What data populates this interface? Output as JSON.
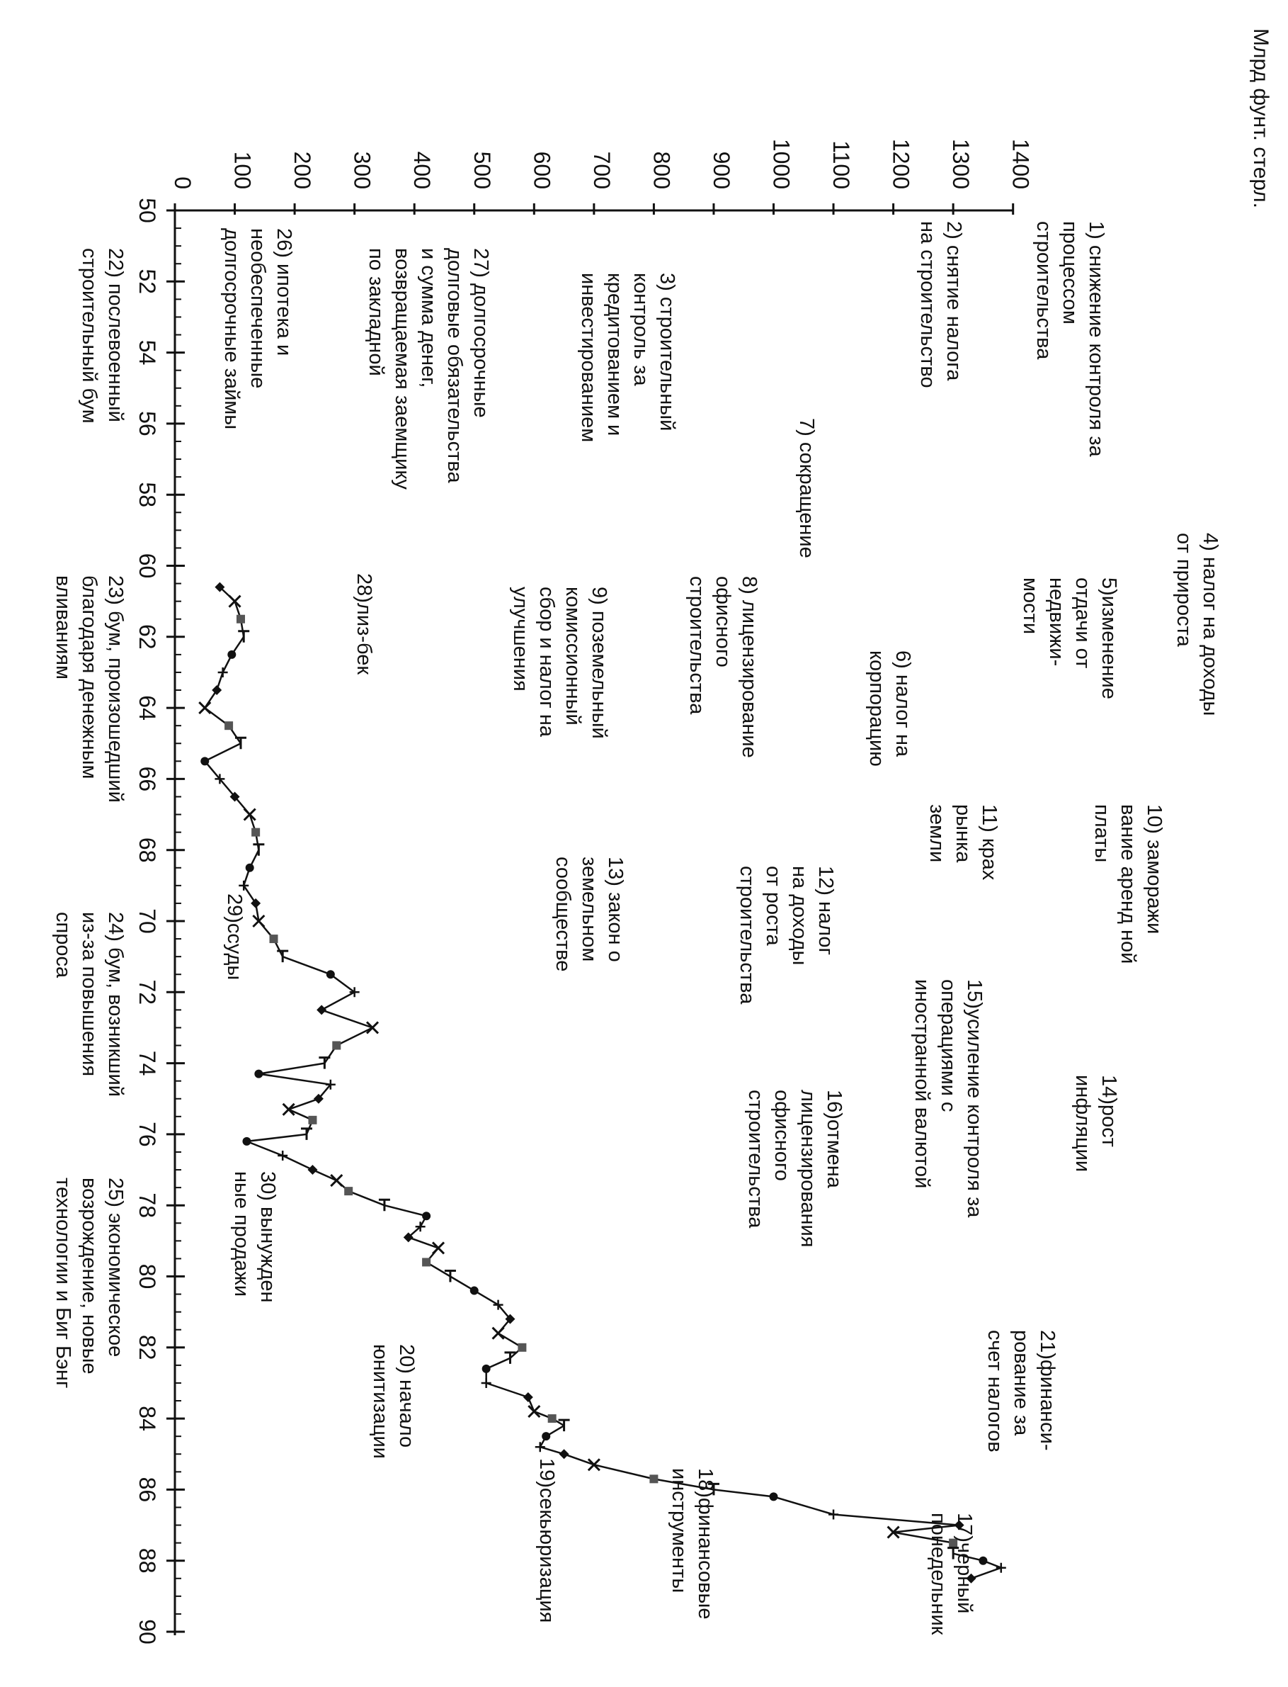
{
  "chart_data": {
    "type": "line",
    "orientation": "rotated-90-clockwise",
    "title": "Млрд фунт. стерл.",
    "xlabel": "",
    "ylabel": "Млрд фунт. стерл.",
    "xlim": [
      50,
      90
    ],
    "ylim": [
      0,
      1400
    ],
    "x_ticks": [
      50,
      52,
      54,
      56,
      58,
      60,
      62,
      64,
      66,
      68,
      70,
      72,
      74,
      76,
      78,
      80,
      82,
      84,
      86,
      88,
      90
    ],
    "y_ticks": [
      0,
      100,
      200,
      300,
      400,
      500,
      600,
      700,
      800,
      900,
      1000,
      1100,
      1200,
      1300,
      1400
    ],
    "grid": false,
    "legend": "none",
    "line_color": "#111111",
    "series": [
      {
        "x": [
          60.6,
          61.0,
          61.5,
          62.0,
          62.5,
          63.0,
          63.5,
          64.0,
          64.5,
          65.0,
          65.5,
          66.0,
          66.5,
          67.0,
          67.5,
          68.0,
          68.5,
          69.0,
          69.5,
          70.0,
          70.5,
          71.0,
          71.5,
          72.0,
          72.5,
          73.0,
          73.5,
          74.0,
          74.3,
          74.6,
          75.0,
          75.3,
          75.6,
          76.0,
          76.2,
          76.6,
          77.0,
          77.3,
          77.6,
          78.0,
          78.3,
          78.6,
          78.9,
          79.2,
          79.6,
          80.0,
          80.4,
          80.8,
          81.2,
          81.6,
          82.0,
          82.3,
          82.6,
          83.0,
          83.4,
          83.8,
          84.0,
          84.2,
          84.5,
          84.8,
          85.0,
          85.3,
          85.7,
          86.0,
          86.2,
          86.7,
          87.0,
          87.2,
          87.5,
          87.8,
          88.0,
          88.2,
          88.5
        ],
        "values": [
          75,
          100,
          110,
          115,
          95,
          80,
          70,
          50,
          90,
          110,
          50,
          75,
          100,
          125,
          135,
          140,
          125,
          115,
          135,
          140,
          165,
          180,
          260,
          300,
          245,
          330,
          270,
          250,
          140,
          260,
          240,
          190,
          230,
          220,
          120,
          180,
          230,
          270,
          290,
          350,
          420,
          410,
          390,
          440,
          420,
          460,
          500,
          540,
          560,
          540,
          580,
          560,
          520,
          520,
          590,
          600,
          630,
          650,
          620,
          610,
          650,
          700,
          800,
          900,
          1000,
          1100,
          1310,
          1200,
          1300,
          1300,
          1350,
          1380,
          1330
        ]
      }
    ],
    "annotations": [
      {
        "id": "ann-1",
        "lines": [
          "1) снижение контроля за",
          "процессом",
          "строительства"
        ]
      },
      {
        "id": "ann-2",
        "lines": [
          "2) снятие налога",
          "на строительство"
        ]
      },
      {
        "id": "ann-3",
        "lines": [
          "3) строительный",
          "контроль за",
          "кредитованием и",
          "инвестированием"
        ]
      },
      {
        "id": "ann-4",
        "lines": [
          "4) налог на доходы",
          "от прироста"
        ]
      },
      {
        "id": "ann-5",
        "lines": [
          "5)изменение",
          "отдачи от",
          "недвижи-",
          "мости"
        ]
      },
      {
        "id": "ann-6",
        "lines": [
          "6) налог на",
          "корпорацию"
        ]
      },
      {
        "id": "ann-7",
        "lines": [
          "7) сокращение"
        ]
      },
      {
        "id": "ann-8",
        "lines": [
          "8) лицензирование",
          "офисного",
          "строительства"
        ]
      },
      {
        "id": "ann-9",
        "lines": [
          "9) поземельный",
          "комиссионный",
          "сбор и налог на",
          "улучшения"
        ]
      },
      {
        "id": "ann-10",
        "lines": [
          "10) заморажи",
          "вание аренд ной",
          "платы"
        ]
      },
      {
        "id": "ann-11",
        "lines": [
          "11) крах",
          "рынка",
          "земли"
        ]
      },
      {
        "id": "ann-12",
        "lines": [
          "12) налог",
          "на доходы",
          "от роста",
          "строительства"
        ]
      },
      {
        "id": "ann-13",
        "lines": [
          "13) закон  о",
          "земельном",
          "сообществе"
        ]
      },
      {
        "id": "ann-14",
        "lines": [
          "14)рост",
          "инфляции"
        ]
      },
      {
        "id": "ann-15",
        "lines": [
          "15)усиление контроля за",
          "операциями с",
          "иностранной валютой"
        ]
      },
      {
        "id": "ann-16",
        "lines": [
          "16)отмена",
          "лицензирования",
          "офисного",
          "строительства"
        ]
      },
      {
        "id": "ann-17",
        "lines": [
          "17)черный",
          "понедельник"
        ]
      },
      {
        "id": "ann-18",
        "lines": [
          "18)финансовые",
          "инструменты"
        ]
      },
      {
        "id": "ann-19",
        "lines": [
          "19)секьюризация"
        ]
      },
      {
        "id": "ann-20",
        "lines": [
          "20) начало",
          "юнитизации"
        ]
      },
      {
        "id": "ann-21",
        "lines": [
          "21)финанси-",
          "рование за",
          "счет налогов"
        ]
      },
      {
        "id": "ann-22",
        "lines": [
          "22) послевоенный",
          "строительный бум"
        ]
      },
      {
        "id": "ann-23",
        "lines": [
          "23) бум,  произошедший",
          "благодаря денежным",
          "вливаниям"
        ]
      },
      {
        "id": "ann-24",
        "lines": [
          "24) бум, возникший",
          "из-за повышения",
          "спроса"
        ]
      },
      {
        "id": "ann-25",
        "lines": [
          "25) экономическое",
          "возрождение, новые",
          "технологии и Биг Бэнг"
        ]
      },
      {
        "id": "ann-26",
        "lines": [
          "26) ипотека и",
          "необеспеченные",
          "долгосрочные займы"
        ]
      },
      {
        "id": "ann-27",
        "lines": [
          "27) долгосрочные",
          "долговые обязательства",
          "и сумма денег,",
          "возвращаемая заемщику",
          "по закладной"
        ]
      },
      {
        "id": "ann-28",
        "lines": [
          "28)лиз-бек"
        ]
      },
      {
        "id": "ann-29",
        "lines": [
          "29)ссуды"
        ]
      },
      {
        "id": "ann-30",
        "lines": [
          "30) вынужден",
          "ные продажи"
        ]
      }
    ]
  }
}
